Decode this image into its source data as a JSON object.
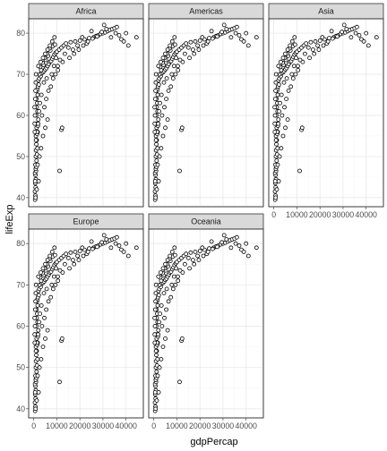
{
  "chart_data": {
    "type": "scatter",
    "facets": [
      "Africa",
      "Americas",
      "Asia",
      "Europe",
      "Oceania"
    ],
    "xlabel": "gdpPercap",
    "ylabel": "lifeExp",
    "xticks": [
      0,
      10000,
      20000,
      30000,
      40000
    ],
    "yticks": [
      40,
      50,
      60,
      70,
      80
    ],
    "xlim": [
      -2200,
      47500
    ],
    "ylim": [
      37.8,
      83.5
    ],
    "grid": true,
    "points": [
      [
        600,
        39.5
      ],
      [
        700,
        40.5
      ],
      [
        500,
        41.5
      ],
      [
        800,
        42.5
      ],
      [
        650,
        43.5
      ],
      [
        900,
        44.5
      ],
      [
        750,
        45.5
      ],
      [
        550,
        46
      ],
      [
        1000,
        46.5
      ],
      [
        850,
        47
      ],
      [
        1100,
        47.5
      ],
      [
        700,
        48
      ],
      [
        1200,
        49
      ],
      [
        900,
        50
      ],
      [
        1400,
        50.5
      ],
      [
        1000,
        51.5
      ],
      [
        1600,
        52
      ],
      [
        1100,
        53
      ],
      [
        1300,
        54
      ],
      [
        950,
        55
      ],
      [
        1500,
        55.5
      ],
      [
        1700,
        56
      ],
      [
        1200,
        57
      ],
      [
        1800,
        57.5
      ],
      [
        1400,
        58
      ],
      [
        2000,
        59
      ],
      [
        1100,
        60
      ],
      [
        1600,
        61
      ],
      [
        1300,
        62
      ],
      [
        1500,
        63
      ],
      [
        1200,
        64
      ],
      [
        1700,
        65
      ],
      [
        1400,
        66
      ],
      [
        1600,
        66.5
      ],
      [
        1800,
        67
      ],
      [
        2200,
        67.5
      ],
      [
        2000,
        68.5
      ],
      [
        2400,
        69
      ],
      [
        3000,
        69.5
      ],
      [
        2600,
        70
      ],
      [
        3500,
        70.3
      ],
      [
        4000,
        70.5
      ],
      [
        4500,
        70.8
      ],
      [
        3200,
        71
      ],
      [
        5000,
        71.2
      ],
      [
        5500,
        71.5
      ],
      [
        2800,
        71.8
      ],
      [
        6000,
        72
      ],
      [
        4200,
        72.3
      ],
      [
        6500,
        72.5
      ],
      [
        3800,
        72.8
      ],
      [
        7000,
        73
      ],
      [
        7500,
        73.2
      ],
      [
        5200,
        73.5
      ],
      [
        8000,
        73.8
      ],
      [
        4800,
        74
      ],
      [
        8500,
        74.2
      ],
      [
        6200,
        74.5
      ],
      [
        9000,
        74.8
      ],
      [
        5800,
        75
      ],
      [
        9500,
        75.2
      ],
      [
        10000,
        75.5
      ],
      [
        7200,
        75.8
      ],
      [
        11000,
        76
      ],
      [
        6800,
        76.3
      ],
      [
        12000,
        76.5
      ],
      [
        8200,
        76.8
      ],
      [
        13000,
        77
      ],
      [
        9200,
        77.2
      ],
      [
        14000,
        77.5
      ],
      [
        16000,
        77.8
      ],
      [
        18000,
        78
      ],
      [
        20000,
        78.2
      ],
      [
        22000,
        78.5
      ],
      [
        24000,
        78.8
      ],
      [
        26000,
        79
      ],
      [
        27000,
        79.3
      ],
      [
        28000,
        79.5
      ],
      [
        29000,
        79.8
      ],
      [
        30000,
        80
      ],
      [
        31000,
        80.2
      ],
      [
        32000,
        80.5
      ],
      [
        33000,
        80.8
      ],
      [
        34000,
        81
      ],
      [
        35000,
        81.2
      ],
      [
        36000,
        81.5
      ],
      [
        30500,
        82
      ],
      [
        25000,
        80.5
      ],
      [
        19000,
        77
      ],
      [
        17000,
        76
      ],
      [
        15000,
        76.5
      ],
      [
        13500,
        75
      ],
      [
        21000,
        79
      ],
      [
        23000,
        77.5
      ],
      [
        38000,
        78.5
      ],
      [
        44500,
        79
      ],
      [
        40000,
        80
      ],
      [
        12500,
        73
      ],
      [
        10500,
        71
      ],
      [
        9700,
        74
      ],
      [
        8800,
        72
      ],
      [
        7800,
        70
      ],
      [
        5600,
        69
      ],
      [
        4400,
        68
      ],
      [
        3300,
        65
      ],
      [
        2700,
        63
      ],
      [
        2300,
        61
      ],
      [
        1900,
        58
      ],
      [
        1500,
        56
      ],
      [
        1000,
        54
      ],
      [
        12000,
        56.5
      ],
      [
        11200,
        46.5
      ],
      [
        12300,
        57
      ],
      [
        2100,
        44
      ],
      [
        1300,
        42
      ],
      [
        800,
        40
      ],
      [
        600,
        44
      ],
      [
        1700,
        48
      ],
      [
        2500,
        50
      ],
      [
        3200,
        52
      ],
      [
        4000,
        55
      ],
      [
        5000,
        57
      ],
      [
        6000,
        59
      ],
      [
        3600,
        60
      ],
      [
        4600,
        62
      ],
      [
        5400,
        64
      ],
      [
        6400,
        66
      ],
      [
        7400,
        67
      ],
      [
        8400,
        69
      ],
      [
        9400,
        70
      ],
      [
        10400,
        72
      ],
      [
        11400,
        73.5
      ],
      [
        15500,
        74
      ],
      [
        17500,
        75
      ],
      [
        19500,
        76
      ],
      [
        21500,
        77
      ],
      [
        23500,
        78
      ],
      [
        25500,
        78.7
      ],
      [
        27500,
        79.2
      ],
      [
        29500,
        80.3
      ],
      [
        31500,
        81
      ],
      [
        33500,
        79
      ],
      [
        35500,
        80
      ],
      [
        37000,
        79.5
      ],
      [
        39000,
        78
      ],
      [
        41000,
        77
      ],
      [
        2000,
        72
      ],
      [
        1000,
        70
      ],
      [
        3000,
        73
      ],
      [
        4000,
        74
      ],
      [
        5000,
        75
      ],
      [
        6000,
        76
      ],
      [
        7000,
        77
      ],
      [
        8000,
        78
      ],
      [
        9000,
        79
      ],
      [
        500,
        60
      ],
      [
        400,
        58
      ],
      [
        450,
        56
      ],
      [
        350,
        62
      ],
      [
        650,
        64
      ],
      [
        750,
        66
      ],
      [
        850,
        68
      ]
    ]
  }
}
